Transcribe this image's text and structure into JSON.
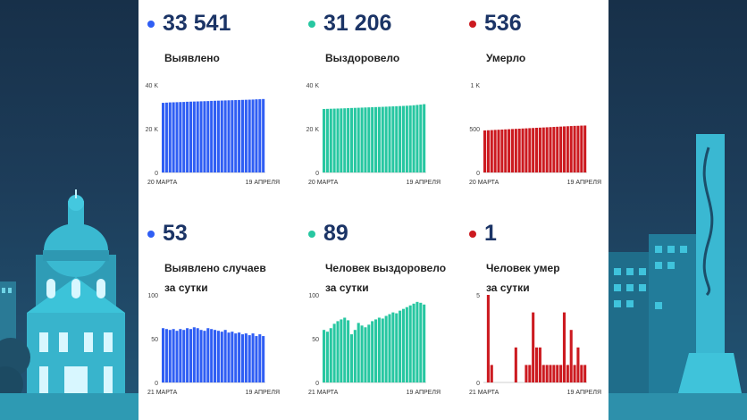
{
  "colors": {
    "blue": "#2f5ef4",
    "teal": "#27c7a1",
    "red": "#cc1a20",
    "number": "#1b3466"
  },
  "cards": [
    {
      "value": "33 541",
      "label": "Выявлено",
      "dot": "blue",
      "y_ticks": [
        "40 K",
        "20 K",
        "0"
      ],
      "x_start": "20 МАРТА",
      "x_end": "19 АПРЕЛЯ"
    },
    {
      "value": "31 206",
      "label": "Выздоровело",
      "dot": "teal",
      "y_ticks": [
        "40 K",
        "20 K",
        "0"
      ],
      "x_start": "20 МАРТА",
      "x_end": "19 АПРЕЛЯ"
    },
    {
      "value": "536",
      "label": "Умерло",
      "dot": "red",
      "y_ticks": [
        "1 K",
        "500",
        "0"
      ],
      "x_start": "20 МАРТА",
      "x_end": "19 АПРЕЛЯ"
    },
    {
      "value": "53",
      "label": "Выявлено случаев\nза сутки",
      "dot": "blue",
      "y_ticks": [
        "100",
        "50",
        "0"
      ],
      "x_start": "21 МАРТА",
      "x_end": "19 АПРЕЛЯ"
    },
    {
      "value": "89",
      "label": "Человек выздоровело\nза сутки",
      "dot": "teal",
      "y_ticks": [
        "100",
        "50",
        "0"
      ],
      "x_start": "21 МАРТА",
      "x_end": "19 АПРЕЛЯ"
    },
    {
      "value": "1",
      "label": "Человек умер\nза сутки",
      "dot": "red",
      "y_ticks": [
        "5",
        "",
        "0"
      ],
      "x_start": "21 МАРТА",
      "x_end": "19 АПРЕЛЯ"
    }
  ],
  "chart_data": [
    {
      "type": "bar",
      "color": "blue",
      "ylim": [
        0,
        40000
      ],
      "values": [
        31800,
        31900,
        32000,
        32050,
        32100,
        32150,
        32200,
        32300,
        32350,
        32400,
        32450,
        32500,
        32550,
        32600,
        32700,
        32750,
        32800,
        32850,
        32900,
        32950,
        33000,
        33050,
        33100,
        33150,
        33200,
        33250,
        33300,
        33400,
        33450,
        33541
      ]
    },
    {
      "type": "bar",
      "color": "teal",
      "ylim": [
        0,
        40000
      ],
      "values": [
        29000,
        29050,
        29100,
        29150,
        29200,
        29250,
        29300,
        29380,
        29450,
        29500,
        29560,
        29620,
        29680,
        29740,
        29800,
        29860,
        29920,
        29980,
        30050,
        30120,
        30190,
        30260,
        30330,
        30400,
        30480,
        30560,
        30700,
        30850,
        31000,
        31206
      ]
    },
    {
      "type": "bar",
      "color": "red",
      "ylim": [
        0,
        1000
      ],
      "values": [
        480,
        482,
        484,
        486,
        488,
        490,
        492,
        494,
        496,
        498,
        500,
        502,
        504,
        506,
        508,
        510,
        512,
        514,
        516,
        518,
        520,
        522,
        524,
        526,
        528,
        530,
        532,
        533,
        535,
        536
      ]
    },
    {
      "type": "bar",
      "color": "blue",
      "ylim": [
        0,
        100
      ],
      "values": [
        62,
        61,
        60,
        61,
        59,
        61,
        60,
        62,
        61,
        63,
        62,
        60,
        59,
        62,
        61,
        60,
        59,
        58,
        60,
        57,
        58,
        56,
        57,
        55,
        56,
        54,
        56,
        53,
        55,
        53
      ]
    },
    {
      "type": "bar",
      "color": "teal",
      "ylim": [
        0,
        100
      ],
      "values": [
        60,
        58,
        62,
        67,
        70,
        72,
        74,
        71,
        55,
        60,
        68,
        65,
        63,
        66,
        70,
        72,
        74,
        73,
        76,
        78,
        80,
        79,
        82,
        84,
        86,
        88,
        90,
        92,
        91,
        89
      ]
    },
    {
      "type": "bar",
      "color": "red",
      "ylim": [
        0,
        5
      ],
      "values": [
        0,
        5,
        1,
        0,
        0,
        0,
        0,
        0,
        0,
        2,
        0,
        0,
        1,
        1,
        4,
        2,
        2,
        1,
        1,
        1,
        1,
        1,
        1,
        4,
        1,
        3,
        1,
        2,
        1,
        1
      ]
    }
  ]
}
